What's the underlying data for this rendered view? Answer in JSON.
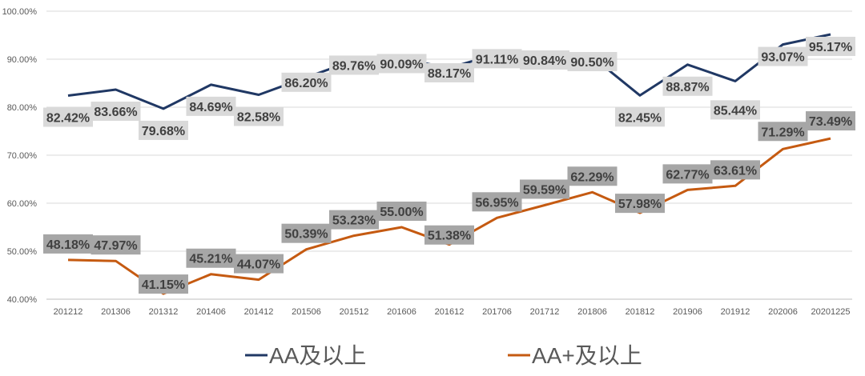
{
  "chart_data": {
    "type": "line",
    "title": "",
    "xlabel": "",
    "ylabel": "",
    "ylim": [
      0.4,
      1.0
    ],
    "yticks": [
      "40.00%",
      "50.00%",
      "60.00%",
      "70.00%",
      "80.00%",
      "90.00%",
      "100.00%"
    ],
    "categories": [
      "201212",
      "201306",
      "201312",
      "201406",
      "201412",
      "201506",
      "201512",
      "201606",
      "201612",
      "201706",
      "201712",
      "201806",
      "201812",
      "201906",
      "201912",
      "202006",
      "20201225"
    ],
    "series": [
      {
        "name": "AA及以上",
        "color": "#203864",
        "label_bg": "#d9d9d9",
        "values": [
          0.8242,
          0.8366,
          0.7968,
          0.8469,
          0.8258,
          0.862,
          0.8976,
          0.9009,
          0.8817,
          0.9111,
          0.9084,
          0.905,
          0.8245,
          0.8887,
          0.8544,
          0.9307,
          0.9517
        ],
        "labels": [
          "82.42%",
          "83.66%",
          "79.68%",
          "84.69%",
          "82.58%",
          "86.20%",
          "89.76%",
          "90.09%",
          "88.17%",
          "91.11%",
          "90.84%",
          "90.50%",
          "82.45%",
          "88.87%",
          "85.44%",
          "93.07%",
          "95.17%"
        ]
      },
      {
        "name": "AA+及以上",
        "color": "#c55a11",
        "label_bg": "#a6a6a6",
        "values": [
          0.4818,
          0.4797,
          0.4115,
          0.4521,
          0.4407,
          0.5039,
          0.5323,
          0.55,
          0.5138,
          0.5695,
          0.5959,
          0.6229,
          0.5798,
          0.6277,
          0.6361,
          0.7129,
          0.7349
        ],
        "labels": [
          "48.18%",
          "47.97%",
          "41.15%",
          "45.21%",
          "44.07%",
          "50.39%",
          "53.23%",
          "55.00%",
          "51.38%",
          "56.95%",
          "59.59%",
          "62.29%",
          "57.98%",
          "62.77%",
          "63.61%",
          "71.29%",
          "73.49%"
        ]
      }
    ],
    "legend": {
      "position": "bottom"
    }
  }
}
